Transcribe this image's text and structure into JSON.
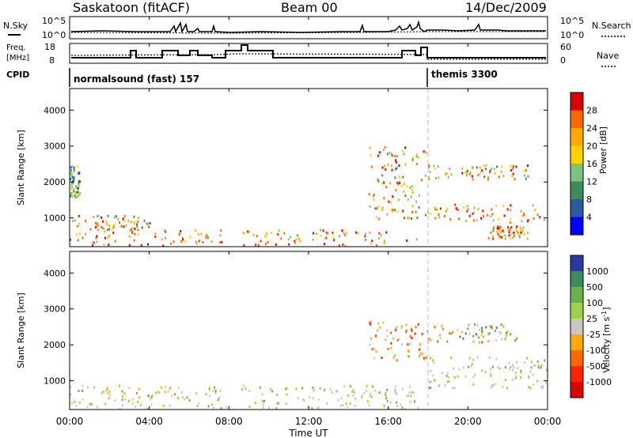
{
  "header": {
    "station": "Saskatoon (fitACF)",
    "beam": "Beam 00",
    "date": "14/Dec/2009"
  },
  "noise_panel": {
    "left_label": "N.Sky",
    "left_ticks": [
      "10^5",
      "10^0"
    ],
    "right_ticks": [
      "10^5",
      "10^0"
    ],
    "right_label": "N.Search"
  },
  "freq_panel": {
    "left_label_top": "Freq.",
    "left_label_bottom": "[MHz]",
    "left_ticks": [
      "18",
      "8"
    ],
    "right_ticks": [
      "60",
      "0"
    ],
    "right_label": "Nave"
  },
  "cpid_panel": {
    "label": "CPID",
    "modes": [
      {
        "name": "normalsound (fast) 157",
        "start_hour": 0.0
      },
      {
        "name": "themis 3300",
        "start_hour": 18.0
      }
    ]
  },
  "time_axis": {
    "label": "Time UT",
    "ticks": [
      "00:00",
      "04:00",
      "08:00",
      "12:00",
      "16:00",
      "20:00",
      "00:00"
    ]
  },
  "chart_data": [
    {
      "type": "heatmap",
      "title": "",
      "xlabel": "Time UT",
      "ylabel": "Slant Range [km]",
      "xlim_hours": [
        0,
        24
      ],
      "ylim_km": [
        200,
        4600
      ],
      "yticks": [
        "1000",
        "2000",
        "3000",
        "4000"
      ],
      "colorbar": {
        "label": "Power [dB]",
        "ticks": [
          "28",
          "24",
          "20",
          "16",
          "12",
          "8",
          "4"
        ],
        "colors": [
          "#dd0000",
          "#ff6600",
          "#ffaa00",
          "#ffd400",
          "#7ec27e",
          "#3a8c5a",
          "#2a5aa0",
          "#0000ff"
        ]
      },
      "echo_regions": [
        {
          "t0": 0.0,
          "t1": 7.9,
          "r0": 250,
          "r1": 700,
          "level": "strong"
        },
        {
          "t0": 0.0,
          "t1": 4.0,
          "r0": 700,
          "r1": 1100,
          "level": "moderate"
        },
        {
          "t0": 0.0,
          "t1": 0.5,
          "r0": 1600,
          "r1": 2500,
          "level": "weak"
        },
        {
          "t0": 8.6,
          "t1": 17.5,
          "r0": 250,
          "r1": 700,
          "level": "strong"
        },
        {
          "t0": 15.0,
          "t1": 18.0,
          "r0": 1000,
          "r1": 3000,
          "level": "moderate"
        },
        {
          "t0": 18.0,
          "t1": 24.0,
          "r0": 900,
          "r1": 1400,
          "level": "strong"
        },
        {
          "t0": 18.0,
          "t1": 23.0,
          "r0": 2100,
          "r1": 2500,
          "level": "moderate"
        },
        {
          "t0": 21.0,
          "t1": 23.0,
          "r0": 450,
          "r1": 800,
          "level": "strong"
        }
      ]
    },
    {
      "type": "heatmap",
      "title": "",
      "xlabel": "Time UT",
      "ylabel": "Slant Range [km]",
      "xlim_hours": [
        0,
        24
      ],
      "ylim_km": [
        200,
        4600
      ],
      "yticks": [
        "1000",
        "2000",
        "3000",
        "4000"
      ],
      "colorbar": {
        "label": "Velocity [m s-1]",
        "ticks": [
          "1000",
          "500",
          "100",
          "25",
          "-25",
          "-100",
          "-500",
          "-1000"
        ],
        "colors": [
          "#2a3aa0",
          "#3a8c5a",
          "#6ab04c",
          "#9bd34c",
          "#c8c8c0",
          "#ffaa00",
          "#ff6600",
          "#ff2200",
          "#dd0000"
        ]
      },
      "echo_regions": [
        {
          "t0": 0.0,
          "t1": 7.9,
          "r0": 250,
          "r1": 900,
          "level": "ground"
        },
        {
          "t0": 8.6,
          "t1": 17.5,
          "r0": 250,
          "r1": 900,
          "level": "ground"
        },
        {
          "t0": 15.0,
          "t1": 18.0,
          "r0": 1600,
          "r1": 2700,
          "level": "negative"
        },
        {
          "t0": 18.0,
          "t1": 24.0,
          "r0": 800,
          "r1": 1700,
          "level": "ground"
        },
        {
          "t0": 18.0,
          "t1": 22.5,
          "r0": 2100,
          "r1": 2600,
          "level": "positive"
        }
      ]
    }
  ]
}
